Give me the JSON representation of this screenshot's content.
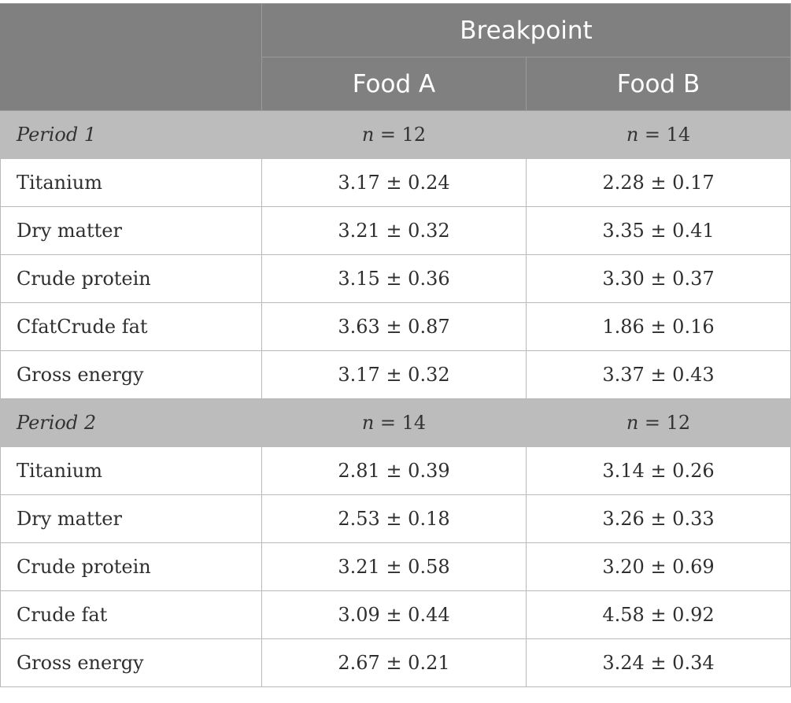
{
  "header": {
    "group_label": "Breakpoint",
    "col_a": "Food A",
    "col_b": "Food B"
  },
  "periods": [
    {
      "label": "Period 1",
      "n_prefix": "n",
      "n_a": " = 12",
      "n_b": " = 14",
      "rows": [
        {
          "label": "Titanium",
          "a": "3.17 ± 0.24",
          "b": "2.28 ± 0.17"
        },
        {
          "label": "Dry matter",
          "a": "3.21 ± 0.32",
          "b": "3.35 ± 0.41"
        },
        {
          "label": "Crude protein",
          "a": "3.15 ± 0.36",
          "b": "3.30 ± 0.37"
        },
        {
          "label": "CfatCrude fat",
          "a": "3.63 ± 0.87",
          "b": "1.86 ± 0.16"
        },
        {
          "label": "Gross energy",
          "a": "3.17 ± 0.32",
          "b": "3.37 ± 0.43"
        }
      ]
    },
    {
      "label": "Period 2",
      "n_prefix": "n",
      "n_a": " = 14",
      "n_b": " = 12",
      "rows": [
        {
          "label": "Titanium",
          "a": "2.81 ± 0.39",
          "b": "3.14 ± 0.26"
        },
        {
          "label": "Dry matter",
          "a": "2.53 ± 0.18",
          "b": "3.26 ± 0.33"
        },
        {
          "label": "Crude protein",
          "a": "3.21 ± 0.58",
          "b": "3.20 ± 0.69"
        },
        {
          "label": "Crude fat",
          "a": "3.09 ± 0.44",
          "b": "4.58 ± 0.92"
        },
        {
          "label": "Gross energy",
          "a": "2.67 ± 0.21",
          "b": "3.24 ± 0.34"
        }
      ]
    }
  ]
}
